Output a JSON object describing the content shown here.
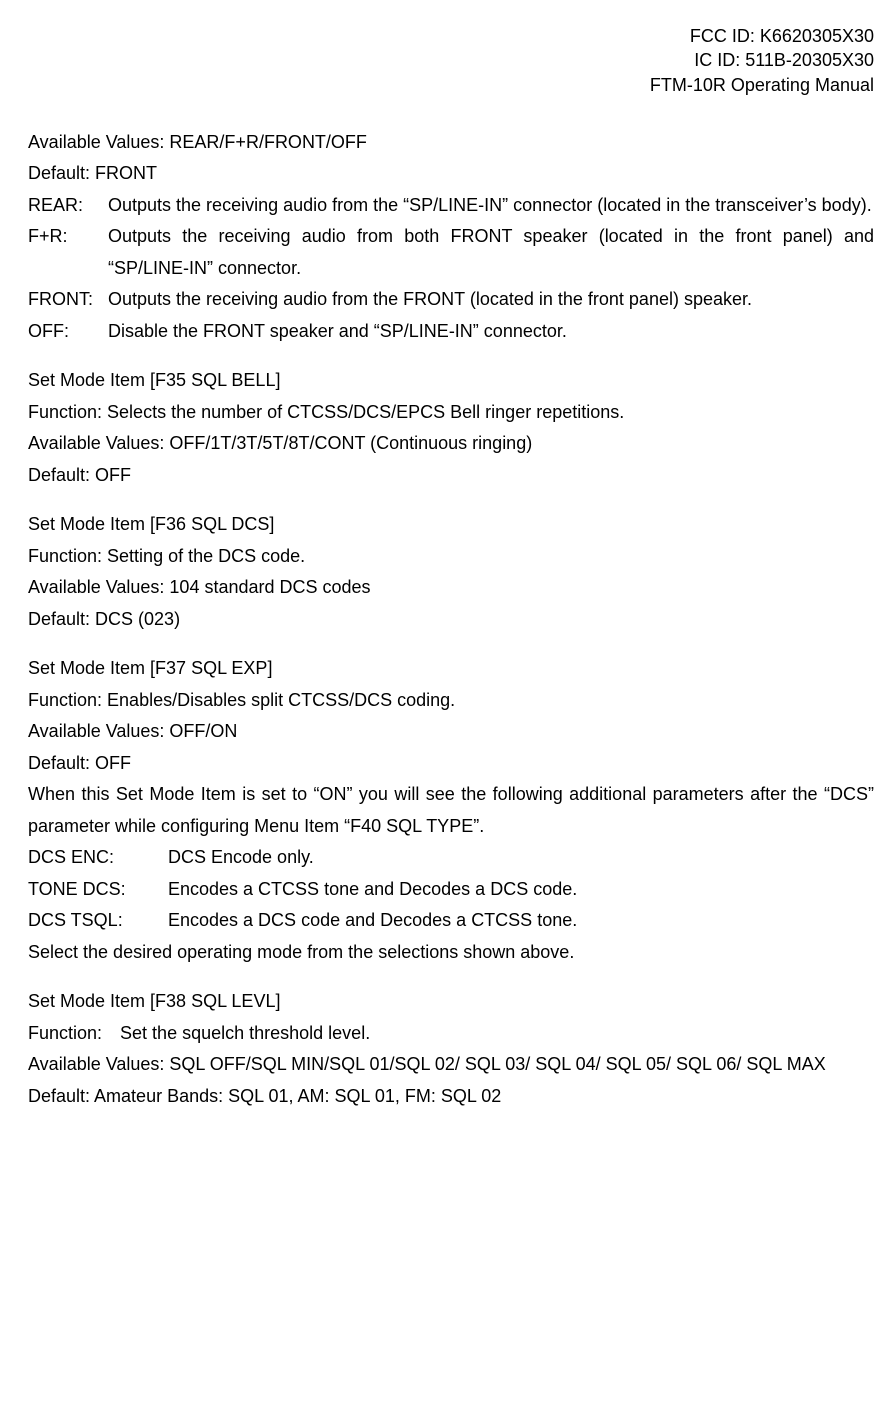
{
  "header": {
    "line1": "FCC ID: K6620305X30",
    "line2": "IC ID: 511B-20305X30",
    "line3": "FTM-10R Operating Manual"
  },
  "intro": {
    "avail": "Available Values: REAR/F+R/FRONT/OFF",
    "default": "Default: FRONT"
  },
  "defs_audio": {
    "rear_term": "REAR:",
    "rear_desc": "Outputs the receiving audio from the “SP/LINE-IN” connector (located in the transceiver’s body).",
    "fr_term": "F+R:",
    "fr_desc": "Outputs the receiving audio from both FRONT speaker (located in the front panel) and “SP/LINE-IN” connector.",
    "front_term": "FRONT:",
    "front_desc": "Outputs the receiving audio from the FRONT (located in the front panel) speaker.",
    "off_term": "OFF:",
    "off_desc": "Disable the FRONT speaker and “SP/LINE-IN” connector."
  },
  "f35": {
    "title": "Set Mode Item [F35 SQL BELL]",
    "function": "Function: Selects the number of CTCSS/DCS/EPCS Bell ringer repetitions.",
    "avail": "Available Values: OFF/1T/3T/5T/8T/CONT (Continuous ringing)",
    "default": "Default: OFF"
  },
  "f36": {
    "title": "Set Mode Item [F36 SQL DCS]",
    "function": "Function: Setting of the DCS code.",
    "avail": "Available Values: 104 standard DCS codes",
    "default": "Default: DCS (023)"
  },
  "f37": {
    "title": "Set Mode Item [F37 SQL EXP]",
    "function": "Function: Enables/Disables split CTCSS/DCS coding.",
    "avail": "Available Values: OFF/ON",
    "default": "Default: OFF",
    "note": "When this Set Mode Item is set to “ON” you will see the following additional parameters after the “DCS” parameter while configuring Menu Item “F40 SQL TYPE”.",
    "dcsenc_term": "DCS ENC:",
    "dcsenc_desc": "DCS Encode only.",
    "tonedcs_term": "TONE DCS:",
    "tonedcs_desc": "Encodes a CTCSS tone and Decodes a DCS code.",
    "dcstsql_term": "DCS TSQL:",
    "dcstsql_desc": "Encodes a DCS code and Decodes a CTCSS tone.",
    "closing": "Select the desired operating mode from the selections shown above."
  },
  "f38": {
    "title": "Set Mode Item [F38 SQL LEVL]",
    "function": "Function: Set the squelch threshold level.",
    "avail": "Available Values: SQL OFF/SQL MIN/SQL 01/SQL 02/ SQL 03/ SQL 04/ SQL 05/ SQL 06/ SQL MAX",
    "default": "Default: Amateur Bands: SQL 01, AM: SQL 01, FM: SQL 02"
  }
}
